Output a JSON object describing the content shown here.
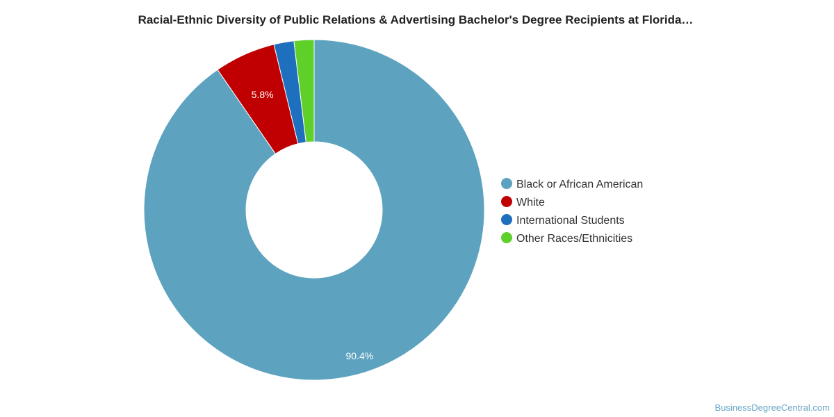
{
  "chart_data": {
    "type": "pie",
    "title": "Racial-Ethnic Diversity of Public Relations & Advertising Bachelor's Degree Recipients at Florida…",
    "slices": [
      {
        "name": "Black or African American",
        "value": 90.4,
        "label": "90.4%",
        "color": "#5da3c0"
      },
      {
        "name": "White",
        "value": 5.8,
        "label": "5.8%",
        "color": "#c00000"
      },
      {
        "name": "International Students",
        "value": 1.9,
        "label": "",
        "color": "#1f6fbf"
      },
      {
        "name": "Other Races/Ethnicities",
        "value": 1.9,
        "label": "",
        "color": "#5fd02a"
      }
    ],
    "donut": true,
    "legend_position": "right"
  },
  "credit": "BusinessDegreeCentral.com"
}
